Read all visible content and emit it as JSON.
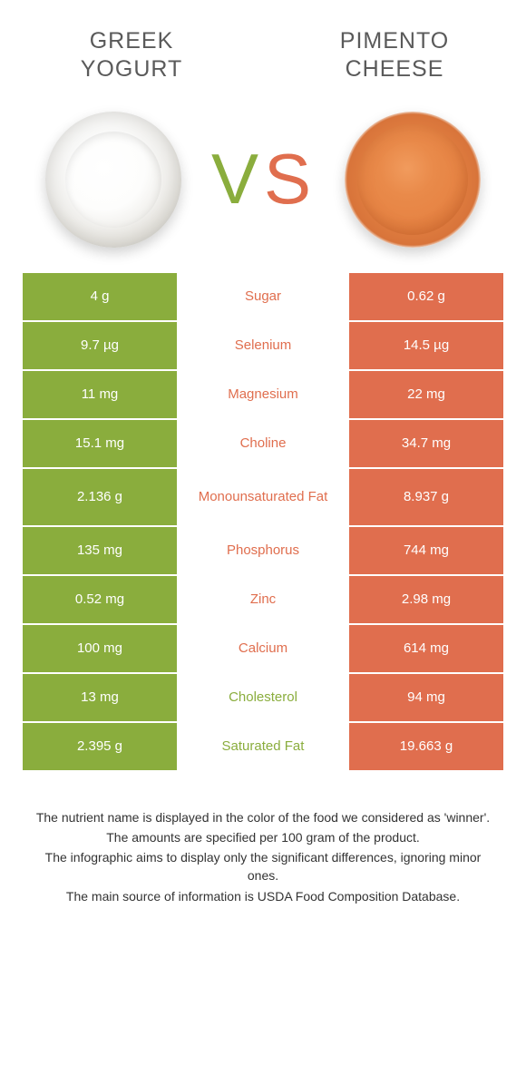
{
  "header": {
    "left_title": "GREEK YOGURT",
    "right_title": "PIMENTO CHEESE"
  },
  "vs": {
    "v": "V",
    "s": "S"
  },
  "colors": {
    "left": "#8aad3d",
    "right": "#e06e4e",
    "footnote_text": "#333333",
    "background": "#ffffff"
  },
  "table": {
    "left_bg": "#8aad3d",
    "right_bg": "#e06e4e",
    "cell_text": "#ffffff",
    "cell_fontsize": 15,
    "rows": [
      {
        "left": "4 g",
        "label": "Sugar",
        "right": "0.62 g",
        "winner": "right",
        "tall": false
      },
      {
        "left": "9.7 µg",
        "label": "Selenium",
        "right": "14.5 µg",
        "winner": "right",
        "tall": false
      },
      {
        "left": "11 mg",
        "label": "Magnesium",
        "right": "22 mg",
        "winner": "right",
        "tall": false
      },
      {
        "left": "15.1 mg",
        "label": "Choline",
        "right": "34.7 mg",
        "winner": "right",
        "tall": false
      },
      {
        "left": "2.136 g",
        "label": "Monounsaturated Fat",
        "right": "8.937 g",
        "winner": "right",
        "tall": true
      },
      {
        "left": "135 mg",
        "label": "Phosphorus",
        "right": "744 mg",
        "winner": "right",
        "tall": false
      },
      {
        "left": "0.52 mg",
        "label": "Zinc",
        "right": "2.98 mg",
        "winner": "right",
        "tall": false
      },
      {
        "left": "100 mg",
        "label": "Calcium",
        "right": "614 mg",
        "winner": "right",
        "tall": false
      },
      {
        "left": "13 mg",
        "label": "Cholesterol",
        "right": "94 mg",
        "winner": "left",
        "tall": false
      },
      {
        "left": "2.395 g",
        "label": "Saturated Fat",
        "right": "19.663 g",
        "winner": "left",
        "tall": false
      }
    ]
  },
  "footnotes": [
    "The nutrient name is displayed in the color of the food we considered as 'winner'.",
    "The amounts are specified per 100 gram of the product.",
    "The infographic aims to display only the significant differences, ignoring minor ones.",
    "The main source of information is USDA Food Composition Database."
  ]
}
